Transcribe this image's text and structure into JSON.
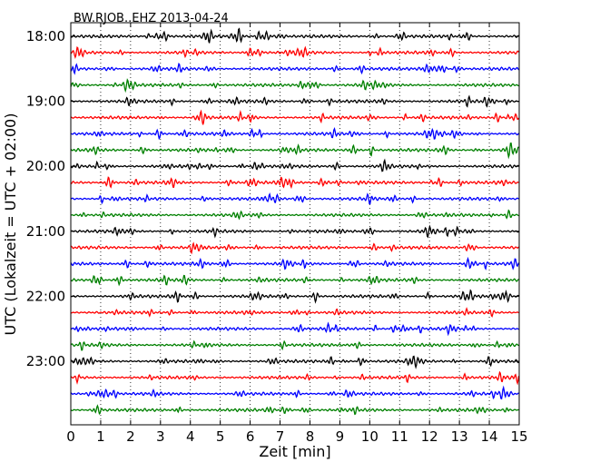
{
  "chart_data": {
    "type": "line",
    "title": "BW.RJOB..EHZ 2013-04-24",
    "xlabel": "Zeit  [min]",
    "ylabel": "UTC (Lokalzeit = UTC + 02:00)",
    "xlim": [
      0,
      15
    ],
    "x_ticks": [
      "0",
      "1",
      "2",
      "3",
      "4",
      "5",
      "6",
      "7",
      "8",
      "9",
      "10",
      "11",
      "12",
      "13",
      "14",
      "15"
    ],
    "y_tick_labels": [
      "18:00",
      "19:00",
      "20:00",
      "21:00",
      "22:00",
      "23:00"
    ],
    "grid": "vertical dotted lines at each minute",
    "trace_colors": [
      "#000000",
      "#ff0000",
      "#0000ff",
      "#008000"
    ],
    "traces": [
      {
        "start": "18:00",
        "color": "#000000"
      },
      {
        "start": "18:15",
        "color": "#ff0000"
      },
      {
        "start": "18:30",
        "color": "#0000ff"
      },
      {
        "start": "18:45",
        "color": "#008000"
      },
      {
        "start": "19:00",
        "color": "#000000"
      },
      {
        "start": "19:15",
        "color": "#ff0000"
      },
      {
        "start": "19:30",
        "color": "#0000ff"
      },
      {
        "start": "19:45",
        "color": "#008000"
      },
      {
        "start": "20:00",
        "color": "#000000"
      },
      {
        "start": "20:15",
        "color": "#ff0000"
      },
      {
        "start": "20:30",
        "color": "#0000ff"
      },
      {
        "start": "20:45",
        "color": "#008000"
      },
      {
        "start": "21:00",
        "color": "#000000"
      },
      {
        "start": "21:15",
        "color": "#ff0000"
      },
      {
        "start": "21:30",
        "color": "#0000ff"
      },
      {
        "start": "21:45",
        "color": "#008000"
      },
      {
        "start": "22:00",
        "color": "#000000"
      },
      {
        "start": "22:15",
        "color": "#ff0000"
      },
      {
        "start": "22:30",
        "color": "#0000ff"
      },
      {
        "start": "22:45",
        "color": "#008000"
      },
      {
        "start": "23:00",
        "color": "#000000"
      },
      {
        "start": "23:15",
        "color": "#ff0000"
      },
      {
        "start": "23:30",
        "color": "#0000ff"
      },
      {
        "start": "23:45",
        "color": "#008000"
      }
    ]
  }
}
